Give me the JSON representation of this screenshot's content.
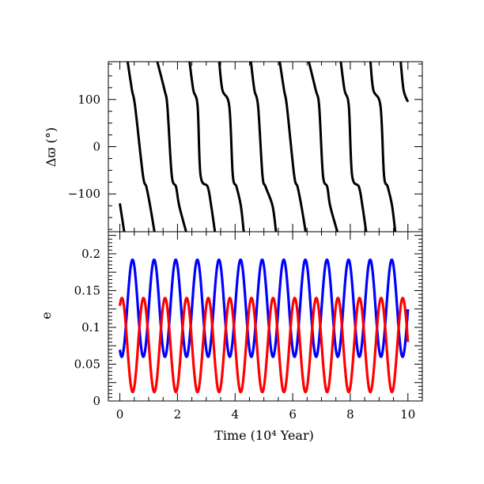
{
  "chart_data": [
    {
      "type": "line",
      "panel": "top",
      "ylabel": "Δϖ (°)",
      "ylim": [
        -180,
        180
      ],
      "xlim": [
        -0.4,
        10.5
      ],
      "yticks": [
        -100,
        0,
        100
      ],
      "ytick_labels": [
        "−100",
        "0",
        "100"
      ],
      "grid": false,
      "series": [
        {
          "color": "#000000",
          "style": "wrapping curve; drops monotonically through 360° each cycle (retrograde circulation), wraps from -180° to +180°",
          "x": [
            0.0,
            0.15,
            0.27,
            0.42,
            0.53,
            0.8,
            0.92,
            1.05,
            1.2,
            1.3,
            1.55,
            1.65,
            1.8,
            1.95,
            2.06,
            2.3,
            2.42,
            2.55,
            2.7,
            2.8,
            3.05,
            3.17,
            3.3,
            3.45,
            3.56,
            3.8,
            3.92,
            4.05,
            4.2,
            4.3,
            4.55,
            4.67,
            4.8,
            4.95,
            5.06,
            5.3,
            5.42,
            5.55,
            5.7,
            5.8,
            6.05,
            6.17,
            6.3,
            6.45,
            6.56,
            6.8,
            6.92,
            7.05,
            7.2,
            7.3,
            7.55,
            7.67,
            7.8,
            7.95,
            8.06,
            8.3,
            8.42,
            8.55,
            8.7,
            8.8,
            9.05,
            9.17,
            9.3,
            9.45,
            9.56,
            9.75,
            9.85,
            10.0
          ],
          "y": [
            -120,
            -180,
            180,
            120,
            85,
            -60,
            -85,
            -125,
            -180,
            180,
            120,
            85,
            -60,
            -85,
            -125,
            -180,
            180,
            120,
            85,
            -60,
            -85,
            -125,
            -180,
            180,
            120,
            85,
            -60,
            -85,
            -125,
            -180,
            180,
            120,
            85,
            -60,
            -85,
            -125,
            -180,
            180,
            120,
            85,
            -60,
            -85,
            -125,
            -180,
            180,
            120,
            85,
            -60,
            -85,
            -125,
            -180,
            180,
            120,
            85,
            -60,
            -85,
            -125,
            -180,
            180,
            120,
            85,
            -60,
            -85,
            -125,
            -180,
            180,
            120,
            95
          ]
        }
      ]
    },
    {
      "type": "line",
      "panel": "bottom",
      "xlabel": "Time (10⁴ Year)",
      "ylabel": "e",
      "xlim": [
        -0.4,
        10.5
      ],
      "ylim": [
        0,
        0.23
      ],
      "xticks": [
        0,
        2,
        4,
        6,
        8,
        10
      ],
      "xtick_labels": [
        "0",
        "2",
        "4",
        "6",
        "8",
        "10"
      ],
      "yticks": [
        0,
        0.05,
        0.1,
        0.15,
        0.2
      ],
      "ytick_labels": [
        "0",
        "0.05",
        "0.1",
        "0.15",
        "0.2"
      ],
      "grid": false,
      "series": [
        {
          "color": "#0000ff",
          "form": "oscillation",
          "mean": 0.126,
          "amplitude": 0.066,
          "period": 0.75,
          "x_start": 0.0,
          "x_end": 10.0,
          "first_minimum_x": 0.06,
          "first_maximum_x": 0.44,
          "min_value": 0.06,
          "max_value": 0.193
        },
        {
          "color": "#ff0000",
          "form": "oscillation",
          "mean": 0.076,
          "amplitude": 0.064,
          "period": 0.75,
          "x_start": 0.0,
          "x_end": 10.0,
          "first_maximum_x": 0.07,
          "first_minimum_x": 0.44,
          "min_value": 0.01,
          "max_value": 0.143
        }
      ]
    }
  ]
}
